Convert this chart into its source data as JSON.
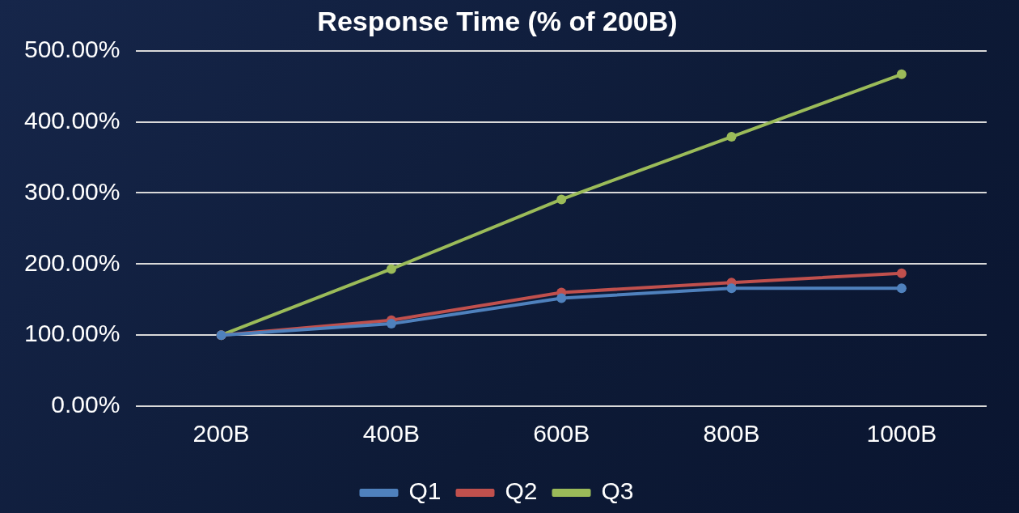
{
  "chart_data": {
    "type": "line",
    "title": "Response Time (% of 200B)",
    "categories": [
      "200B",
      "400B",
      "600B",
      "800B",
      "1000B"
    ],
    "series": [
      {
        "name": "Q1",
        "color": "#4f81bd",
        "values": [
          100,
          116,
          152,
          166,
          166
        ]
      },
      {
        "name": "Q2",
        "color": "#c0504d",
        "values": [
          100,
          121,
          160,
          174,
          187
        ]
      },
      {
        "name": "Q3",
        "color": "#9bbb59",
        "values": [
          100,
          193,
          291,
          379,
          467
        ]
      }
    ],
    "ylim": [
      0,
      500
    ],
    "yticks": [
      {
        "value": 0,
        "label": "0.00%"
      },
      {
        "value": 100,
        "label": "100.00%"
      },
      {
        "value": 200,
        "label": "200.00%"
      },
      {
        "value": 300,
        "label": "300.00%"
      },
      {
        "value": 400,
        "label": "400.00%"
      },
      {
        "value": 500,
        "label": "500.00%"
      }
    ],
    "grid": "y",
    "legend": "bottom",
    "marker": "circle",
    "line_style": "solid"
  }
}
